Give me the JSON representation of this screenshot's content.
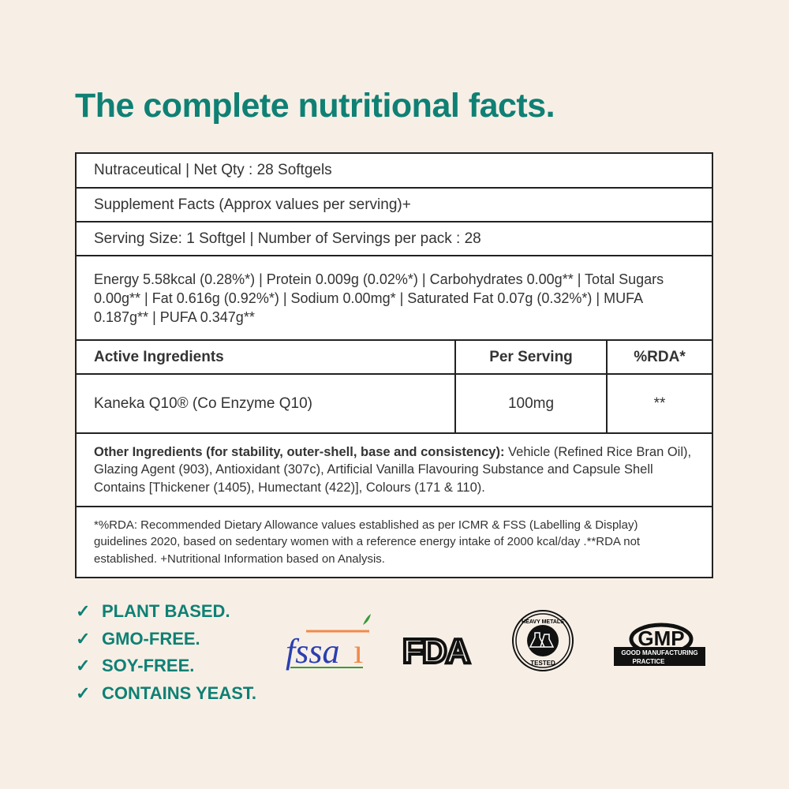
{
  "title": "The complete nutritional facts.",
  "table": {
    "row1": "Nutraceutical  |  Net Qty : 28 Softgels",
    "row2": "Supplement Facts (Approx values per serving)+",
    "row3": "Serving Size: 1 Softgel |  Number of Servings per pack : 28",
    "nutrition": "Energy 5.58kcal (0.28%*) | Protein 0.009g (0.02%*) | Carbohydrates 0.00g** | Total Sugars 0.00g** | Fat 0.616g (0.92%*) | Sodium 0.00mg* | Saturated Fat 0.07g (0.32%*) | MUFA 0.187g** | PUFA 0.347g**",
    "headers": [
      "Active Ingredients",
      "Per Serving",
      "%RDA*"
    ],
    "ingredients": [
      {
        "name": "Kaneka Q10® (Co Enzyme Q10)",
        "per_serving": "100mg",
        "rda": "**"
      }
    ],
    "other_label": "Other Ingredients (for stability, outer-shell, base and consistency):",
    "other_text": " Vehicle (Refined Rice Bran Oil), Glazing Agent (903), Antioxidant (307c), Artificial Vanilla Flavouring Substance and Capsule Shell Contains [Thickener (1405), Humectant (422)], Colours (171 & 110).",
    "footnote": "*%RDA: Recommended Dietary Allowance values established as per ICMR & FSS (Labelling & Display) guidelines 2020, based on sedentary women with a reference energy intake of 2000 kcal/day .**RDA not established. +Nutritional Information based on Analysis."
  },
  "claims": [
    "PLANT BASED.",
    "GMO-FREE.",
    "SOY-FREE.",
    "CONTAINS YEAST."
  ],
  "check_icon": "✓",
  "logos": {
    "fssai": "fssai",
    "fda": "FDA",
    "heavy_metals_top": "HEAVY METALS",
    "heavy_metals_bottom": "TESTED",
    "gmp": "GMP",
    "gmp_sub1": "GOOD MANUFACTURING",
    "gmp_sub2": "PRACTICE"
  },
  "colors": {
    "accent": "#0f8074",
    "background": "#f7efe6"
  }
}
